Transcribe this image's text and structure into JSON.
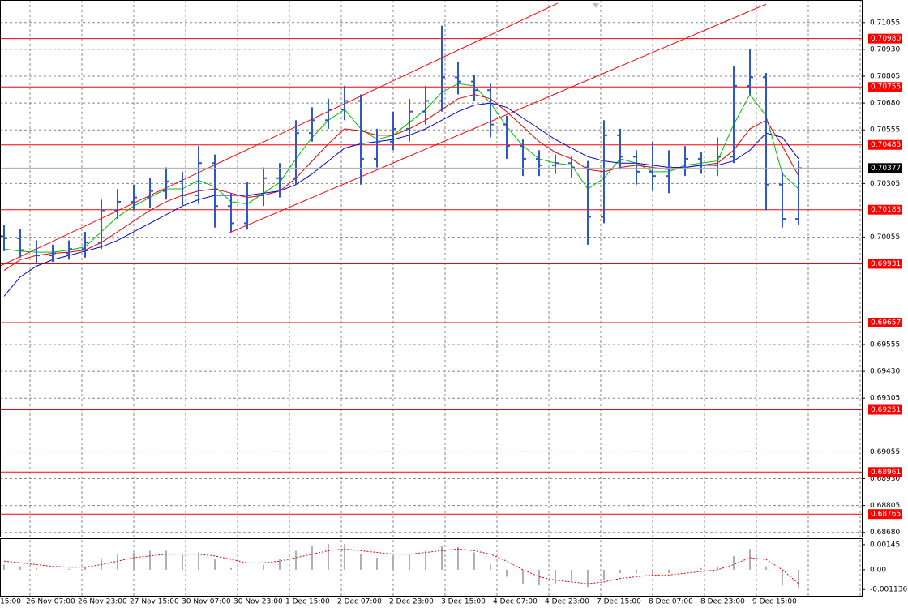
{
  "chart_data": {
    "type": "ohlc",
    "x_labels": [
      "15:00",
      "26 Nov 07:00",
      "26 Nov 23:00",
      "27 Nov 15:00",
      "30 Nov 07:00",
      "30 Nov 23:00",
      "1 Dec 15:00",
      "2 Dec 07:00",
      "2 Dec 23:00",
      "3 Dec 15:00",
      "4 Dec 07:00",
      "4 Dec 23:00",
      "7 Dec 15:00",
      "8 Dec 07:00",
      "8 Dec 23:00",
      "9 Dec 15:00"
    ],
    "open": [
      0.7006,
      0.7005,
      0.69995,
      0.6997,
      0.6998,
      0.7,
      0.7003,
      0.7018,
      0.7022,
      0.7024,
      0.7027,
      0.70315,
      0.7025,
      0.704,
      0.702,
      0.7012,
      0.7025,
      0.7033,
      0.7033,
      0.7054,
      0.706,
      0.7065,
      0.7069,
      0.7042,
      0.705,
      0.7056,
      0.7064,
      0.7069,
      0.708,
      0.7078,
      0.7074,
      0.7058,
      0.7048,
      0.7042,
      0.7039,
      0.704,
      0.7038,
      0.7015,
      0.7053,
      0.7043,
      0.7036,
      0.7034,
      0.7038,
      0.7042,
      0.7039,
      0.7043,
      0.7076,
      0.708,
      0.703,
      0.7014
    ],
    "high": [
      0.7011,
      0.70095,
      0.7004,
      0.7002,
      0.7004,
      0.7008,
      0.7023,
      0.7028,
      0.703,
      0.7033,
      0.7038,
      0.7036,
      0.7048,
      0.7044,
      0.7026,
      0.7031,
      0.7038,
      0.704,
      0.706,
      0.7066,
      0.707,
      0.7076,
      0.7072,
      0.7056,
      0.7064,
      0.707,
      0.7076,
      0.7104,
      0.7087,
      0.7081,
      0.7077,
      0.7062,
      0.7051,
      0.7046,
      0.7044,
      0.7043,
      0.7041,
      0.706,
      0.7056,
      0.7046,
      0.705,
      0.7046,
      0.7048,
      0.7045,
      0.7052,
      0.7085,
      0.7093,
      0.7082,
      0.7036,
      0.7041
    ],
    "low": [
      0.6999,
      0.6996,
      0.6993,
      0.6994,
      0.6995,
      0.6996,
      0.7,
      0.7014,
      0.7018,
      0.7019,
      0.7023,
      0.702,
      0.7021,
      0.701,
      0.7008,
      0.7009,
      0.702,
      0.7024,
      0.703,
      0.705,
      0.7056,
      0.706,
      0.703,
      0.7038,
      0.7046,
      0.705,
      0.7058,
      0.7064,
      0.7072,
      0.7069,
      0.7052,
      0.7042,
      0.7034,
      0.7034,
      0.7035,
      0.7033,
      0.7002,
      0.7012,
      0.7037,
      0.703,
      0.7027,
      0.7026,
      0.7034,
      0.7035,
      0.7034,
      0.704,
      0.7072,
      0.7018,
      0.701,
      0.7011
    ],
    "close": [
      0.7005,
      0.69995,
      0.6997,
      0.6998,
      0.7,
      0.7003,
      0.7018,
      0.7022,
      0.7024,
      0.7027,
      0.70315,
      0.7025,
      0.704,
      0.702,
      0.7012,
      0.7025,
      0.7033,
      0.7033,
      0.7054,
      0.706,
      0.7065,
      0.7069,
      0.7042,
      0.705,
      0.7056,
      0.7064,
      0.7069,
      0.708,
      0.7078,
      0.7074,
      0.7058,
      0.7048,
      0.7042,
      0.7039,
      0.704,
      0.7038,
      0.7015,
      0.7053,
      0.7043,
      0.7036,
      0.7034,
      0.7038,
      0.7042,
      0.7039,
      0.7043,
      0.7076,
      0.708,
      0.703,
      0.7014,
      0.70377
    ],
    "bar_color": "#2f57c8",
    "moving_averages": [
      {
        "color": "#00c000",
        "values": [
          0.7,
          0.6999,
          0.69985,
          0.69985,
          0.69995,
          0.7001,
          0.7008,
          0.7015,
          0.702,
          0.7024,
          0.7028,
          0.7028,
          0.7032,
          0.7029,
          0.7022,
          0.7021,
          0.7026,
          0.7031,
          0.7042,
          0.7052,
          0.706,
          0.7065,
          0.7056,
          0.7051,
          0.7053,
          0.7059,
          0.7065,
          0.7073,
          0.7077,
          0.7076,
          0.7068,
          0.7057,
          0.7048,
          0.7042,
          0.704,
          0.7039,
          0.7028,
          0.7033,
          0.7042,
          0.704,
          0.7036,
          0.7036,
          0.7039,
          0.704,
          0.7041,
          0.7058,
          0.7072,
          0.7062,
          0.7035,
          0.7028
        ]
      },
      {
        "color": "#e00000",
        "values": [
          0.699,
          0.6995,
          0.6997,
          0.6998,
          0.69985,
          0.69995,
          0.7003,
          0.7008,
          0.7013,
          0.7018,
          0.7022,
          0.7025,
          0.7027,
          0.7028,
          0.7026,
          0.7024,
          0.7025,
          0.7027,
          0.7033,
          0.7041,
          0.7049,
          0.7056,
          0.7055,
          0.7053,
          0.7053,
          0.7056,
          0.706,
          0.7065,
          0.707,
          0.7072,
          0.707,
          0.7064,
          0.7057,
          0.705,
          0.7045,
          0.7042,
          0.7037,
          0.7036,
          0.7038,
          0.7039,
          0.7038,
          0.7037,
          0.7038,
          0.7039,
          0.704,
          0.7046,
          0.7056,
          0.706,
          0.7048,
          0.7034
        ]
      },
      {
        "color": "#0000d0",
        "values": [
          0.6978,
          0.6987,
          0.6992,
          0.6995,
          0.6997,
          0.6999,
          0.7001,
          0.7004,
          0.7008,
          0.7012,
          0.7016,
          0.702,
          0.7023,
          0.7025,
          0.7025,
          0.7025,
          0.7026,
          0.7027,
          0.703,
          0.7035,
          0.7041,
          0.7047,
          0.7049,
          0.705,
          0.7051,
          0.7053,
          0.7056,
          0.706,
          0.7064,
          0.7067,
          0.7068,
          0.7066,
          0.7061,
          0.7056,
          0.7051,
          0.7047,
          0.7043,
          0.7041,
          0.704,
          0.704,
          0.7039,
          0.7038,
          0.7038,
          0.7039,
          0.7039,
          0.7041,
          0.7046,
          0.7054,
          0.7052,
          0.7042
        ]
      }
    ],
    "levels": [
      {
        "value": 0.7098,
        "label": "0.70980"
      },
      {
        "value": 0.70755,
        "label": "0.70755"
      },
      {
        "value": 0.70485,
        "label": "0.70485"
      },
      {
        "value": 0.70183,
        "label": "0.70183"
      },
      {
        "value": 0.69931,
        "label": "0.69931"
      },
      {
        "value": 0.69657,
        "label": "0.69657"
      },
      {
        "value": 0.69251,
        "label": "0.69251"
      },
      {
        "value": 0.68961,
        "label": "0.68961"
      },
      {
        "value": 0.68765,
        "label": "0.68765"
      }
    ],
    "level_color": "#ff0000",
    "trendlines": [
      {
        "x": [
          -0.25,
          34.15
        ],
        "y": [
          0.6992,
          0.71145
        ]
      },
      {
        "x": [
          13.85,
          47
        ],
        "y": [
          0.70074,
          0.71141
        ]
      }
    ],
    "ylim": [
      0.6866,
      0.7116
    ],
    "yticks": [
      0.71055,
      {
        "value": 0.7093,
        "label": "0.70930"
      },
      0.70805,
      {
        "value": 0.7068,
        "label": "0.70680"
      },
      0.70555,
      0.70305,
      0.70055,
      0.69555,
      {
        "value": 0.6943,
        "label": "0.69430"
      },
      0.69305,
      0.69055,
      {
        "value": 0.6893,
        "label": "0.68930"
      },
      0.68805,
      {
        "value": 0.6868,
        "label": "0.68680"
      }
    ],
    "grid": true,
    "oscillator": {
      "ylim": [
        -0.0015,
        0.00182
      ],
      "yticks": [
        0.00145,
        {
          "value": 0,
          "label": "0.00"
        },
        -0.001136
      ],
      "color": "#b0b0b0",
      "values": [
        0.0003,
        0.0002,
        0.0001,
        0,
        5e-05,
        0.0002,
        0.0006,
        0.0009,
        0.001,
        0.0011,
        0.0011,
        0.0009,
        0.001,
        0.0006,
        0.0001,
        0,
        0.0003,
        0.0006,
        0.0011,
        0.0014,
        0.0015,
        0.0015,
        0.0009,
        0.0007,
        0.0008,
        0.0009,
        0.0011,
        0.0014,
        0.0013,
        0.001,
        0.0003,
        -0.0004,
        -0.0008,
        -0.0009,
        -0.0008,
        -0.0007,
        -0.001,
        -0.0006,
        -0.0002,
        -0.0002,
        -0.0003,
        -0.0002,
        0,
        0.0001,
        0.0002,
        0.0008,
        0.0012,
        0.0002,
        -0.0009,
        -0.0011
      ],
      "signal": {
        "color": "#e00000",
        "values": [
          0.0005,
          0.0004,
          0.0003,
          0.0002,
          0.00015,
          0.00015,
          0.0003,
          0.0005,
          0.0007,
          0.0008,
          0.0009,
          0.0009,
          0.0009,
          0.0008,
          0.0006,
          0.0004,
          0.0004,
          0.0005,
          0.0007,
          0.0009,
          0.0011,
          0.0012,
          0.0011,
          0.001,
          0.0009,
          0.0009,
          0.001,
          0.0011,
          0.0012,
          0.0011,
          0.0009,
          0.0005,
          0,
          -0.0004,
          -0.0006,
          -0.0007,
          -0.0008,
          -0.0007,
          -0.0005,
          -0.0004,
          -0.0003,
          -0.0003,
          -0.0002,
          -0.0001,
          0,
          0.0003,
          0.0007,
          0.0006,
          0,
          -0.0008
        ]
      }
    }
  }
}
